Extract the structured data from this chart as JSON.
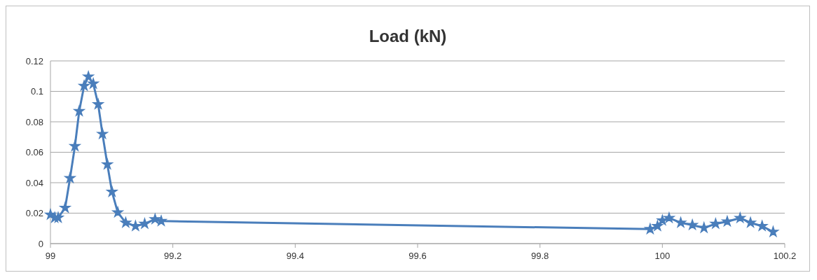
{
  "chart_data": {
    "type": "line",
    "title": "Load (kN)",
    "x": [
      99.0,
      99.007,
      99.0126,
      99.024,
      99.032,
      99.04,
      99.047,
      99.055,
      99.062,
      99.07,
      99.078,
      99.085,
      99.093,
      99.1006,
      99.11,
      99.123,
      99.139,
      99.154,
      99.171,
      99.181,
      99.98,
      99.992,
      100.0,
      100.011,
      100.03,
      100.049,
      100.068,
      100.087,
      100.106,
      100.127,
      100.144,
      100.163,
      100.181
    ],
    "series": [
      {
        "color": "#4a7ebb",
        "values": [
          0.019,
          0.017,
          0.017,
          0.0235,
          0.043,
          0.064,
          0.087,
          0.1036,
          0.1096,
          0.105,
          0.0915,
          0.072,
          0.052,
          0.034,
          0.0205,
          0.0137,
          0.0115,
          0.013,
          0.016,
          0.0148,
          0.0095,
          0.0115,
          0.0152,
          0.0168,
          0.0137,
          0.0122,
          0.0103,
          0.013,
          0.0145,
          0.0168,
          0.0137,
          0.0115,
          0.0077
        ]
      }
    ],
    "xlim": [
      99,
      100.2
    ],
    "xticks": [
      99,
      99.2,
      99.4,
      99.6,
      99.8,
      100,
      100.2
    ],
    "ylim": [
      0,
      0.12
    ],
    "yticks": [
      0,
      0.02,
      0.04,
      0.06,
      0.08,
      0.1,
      0.12
    ],
    "grid": "y",
    "marker": "star",
    "line_style": "solid"
  }
}
